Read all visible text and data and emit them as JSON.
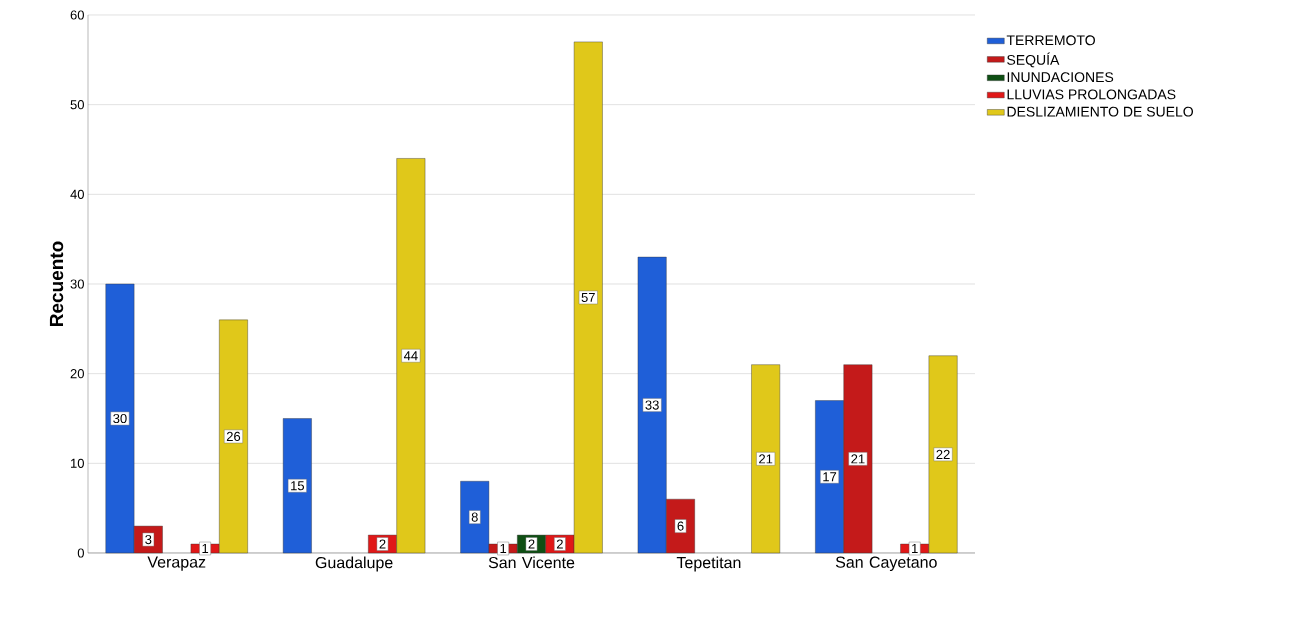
{
  "chart_data": {
    "type": "bar",
    "ylabel": "Recuento",
    "categories": [
      "Verapaz",
      "Guadalupe",
      "San Vicente",
      "Tepetitan",
      "San Cayetano"
    ],
    "series": [
      {
        "name": "TERREMOTO",
        "color": "#1f5fd8",
        "values": [
          30,
          15,
          8,
          33,
          17
        ]
      },
      {
        "name": "SEQUÍA",
        "color": "#c41a1a",
        "values": [
          3,
          null,
          1,
          6,
          21
        ]
      },
      {
        "name": "INUNDACIONES",
        "color": "#0f4f14",
        "values": [
          null,
          null,
          2,
          null,
          null
        ]
      },
      {
        "name": "LLUVIAS PROLONGADAS",
        "color": "#e01818",
        "values": [
          1,
          2,
          2,
          null,
          1
        ]
      },
      {
        "name": "DESLIZAMIENTO DE SUELO",
        "color": "#e0c81a",
        "values": [
          26,
          44,
          57,
          21,
          22
        ]
      }
    ],
    "ylim": [
      0,
      60
    ],
    "yticks": [
      0,
      10,
      20,
      30,
      40,
      50,
      60
    ],
    "grid": "y",
    "legend": "right",
    "data_labels": true
  }
}
